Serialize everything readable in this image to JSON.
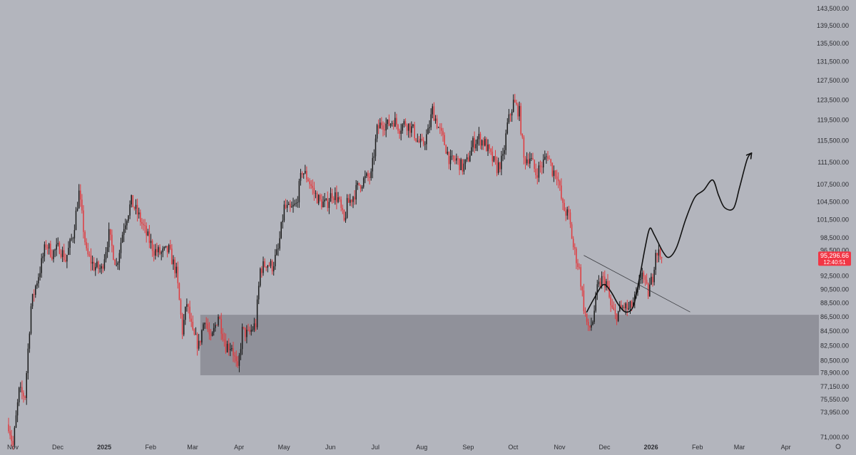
{
  "chart_data": {
    "type": "candlestick",
    "price_axis": {
      "ticks": [
        143500,
        139500,
        135500,
        131500,
        127500,
        123500,
        119500,
        115500,
        111500,
        107500,
        104500,
        101500,
        98500,
        96500,
        92500,
        90500,
        88500,
        86500,
        84500,
        82500,
        80500,
        78900,
        77150,
        75550,
        73950,
        71000
      ],
      "tick_labels": [
        "143,500.00",
        "139,500.00",
        "135,500.00",
        "131,500.00",
        "127,500.00",
        "123,500.00",
        "119,500.00",
        "115,500.00",
        "111,500.00",
        "107,500.00",
        "104,500.00",
        "101,500.00",
        "98,500.00",
        "96,500.00",
        "92,500.00",
        "90,500.00",
        "88,500.00",
        "86,500.00",
        "84,500.00",
        "82,500.00",
        "80,500.00",
        "78,900.00",
        "77,150.00",
        "75,550.00",
        "73,950.00",
        "71,000.00"
      ],
      "log_scale": true
    },
    "time_axis": {
      "labels": [
        "Nov",
        "Dec",
        "2025",
        "Feb",
        "Mar",
        "Apr",
        "May",
        "Jun",
        "Jul",
        "Aug",
        "Sep",
        "Oct",
        "Nov",
        "Dec",
        "2026",
        "Feb",
        "Mar",
        "Apr"
      ],
      "bold_labels": [
        "2025",
        "2026"
      ],
      "label_days": [
        0,
        30,
        61,
        92,
        120,
        151,
        181,
        212,
        242,
        273,
        304,
        334,
        365,
        395,
        426,
        457,
        485,
        516
      ]
    },
    "last_price": {
      "value": 95296.66,
      "label": "95,296.66",
      "countdown": "12:40:51",
      "color": "#f23645"
    },
    "up_color": "#1a1a1a",
    "down_color": "#e03a3e",
    "support_zone": {
      "low": 78600,
      "high": 86800
    },
    "trendline": [
      {
        "day": 384,
        "price": 95700
      },
      {
        "day": 455,
        "price": 87200
      }
    ],
    "projection_path": [
      {
        "day": 386,
        "price": 87200
      },
      {
        "day": 391,
        "price": 89200
      },
      {
        "day": 397,
        "price": 91200
      },
      {
        "day": 402,
        "price": 90200
      },
      {
        "day": 407,
        "price": 88300
      },
      {
        "day": 412,
        "price": 87200
      },
      {
        "day": 417,
        "price": 88000
      },
      {
        "day": 421,
        "price": 92000
      },
      {
        "day": 425,
        "price": 97000
      },
      {
        "day": 428,
        "price": 100000
      },
      {
        "day": 431,
        "price": 99000
      },
      {
        "day": 437,
        "price": 96200
      },
      {
        "day": 441,
        "price": 95400
      },
      {
        "day": 446,
        "price": 97000
      },
      {
        "day": 452,
        "price": 101500
      },
      {
        "day": 458,
        "price": 105200
      },
      {
        "day": 464,
        "price": 106500
      },
      {
        "day": 470,
        "price": 108300
      },
      {
        "day": 474,
        "price": 105600
      },
      {
        "day": 478,
        "price": 103500
      },
      {
        "day": 484,
        "price": 103400
      },
      {
        "day": 488,
        "price": 107000
      },
      {
        "day": 493,
        "price": 112000
      },
      {
        "day": 496,
        "price": 113200
      }
    ],
    "projection_arrow_tip": {
      "day": 496,
      "price": 113200
    },
    "price_anchors": [
      {
        "day": 0,
        "price": 72500
      },
      {
        "day": 3,
        "price": 70000
      },
      {
        "day": 7,
        "price": 76500
      },
      {
        "day": 11,
        "price": 76000
      },
      {
        "day": 15,
        "price": 88000
      },
      {
        "day": 18,
        "price": 91000
      },
      {
        "day": 21,
        "price": 93500
      },
      {
        "day": 25,
        "price": 97500
      },
      {
        "day": 29,
        "price": 96000
      },
      {
        "day": 34,
        "price": 97000
      },
      {
        "day": 38,
        "price": 95000
      },
      {
        "day": 43,
        "price": 99000
      },
      {
        "day": 47,
        "price": 106000
      },
      {
        "day": 52,
        "price": 96000
      },
      {
        "day": 57,
        "price": 94000
      },
      {
        "day": 62,
        "price": 93500
      },
      {
        "day": 67,
        "price": 99000
      },
      {
        "day": 72,
        "price": 94000
      },
      {
        "day": 77,
        "price": 100500
      },
      {
        "day": 82,
        "price": 104500
      },
      {
        "day": 87,
        "price": 102000
      },
      {
        "day": 92,
        "price": 99000
      },
      {
        "day": 97,
        "price": 96500
      },
      {
        "day": 102,
        "price": 96000
      },
      {
        "day": 107,
        "price": 96500
      },
      {
        "day": 112,
        "price": 93000
      },
      {
        "day": 116,
        "price": 84500
      },
      {
        "day": 119,
        "price": 88500
      },
      {
        "day": 123,
        "price": 84000
      },
      {
        "day": 127,
        "price": 82500
      },
      {
        "day": 131,
        "price": 86500
      },
      {
        "day": 135,
        "price": 83000
      },
      {
        "day": 140,
        "price": 86800
      },
      {
        "day": 145,
        "price": 82500
      },
      {
        "day": 149,
        "price": 82500
      },
      {
        "day": 153,
        "price": 79000
      },
      {
        "day": 156,
        "price": 84500
      },
      {
        "day": 160,
        "price": 84000
      },
      {
        "day": 165,
        "price": 85500
      },
      {
        "day": 168,
        "price": 93500
      },
      {
        "day": 172,
        "price": 94500
      },
      {
        "day": 176,
        "price": 94000
      },
      {
        "day": 180,
        "price": 96500
      },
      {
        "day": 184,
        "price": 103500
      },
      {
        "day": 188,
        "price": 103000
      },
      {
        "day": 192,
        "price": 104000
      },
      {
        "day": 196,
        "price": 110000
      },
      {
        "day": 200,
        "price": 108500
      },
      {
        "day": 204,
        "price": 106000
      },
      {
        "day": 208,
        "price": 104500
      },
      {
        "day": 212,
        "price": 104000
      },
      {
        "day": 216,
        "price": 106000
      },
      {
        "day": 220,
        "price": 105000
      },
      {
        "day": 224,
        "price": 101000
      },
      {
        "day": 226,
        "price": 104000
      },
      {
        "day": 230,
        "price": 105500
      },
      {
        "day": 234,
        "price": 107500
      },
      {
        "day": 238,
        "price": 108500
      },
      {
        "day": 242,
        "price": 109000
      },
      {
        "day": 246,
        "price": 117500
      },
      {
        "day": 249,
        "price": 119000
      },
      {
        "day": 253,
        "price": 118500
      },
      {
        "day": 257,
        "price": 119500
      },
      {
        "day": 261,
        "price": 118000
      },
      {
        "day": 265,
        "price": 119000
      },
      {
        "day": 270,
        "price": 117500
      },
      {
        "day": 273,
        "price": 115500
      },
      {
        "day": 276,
        "price": 114500
      },
      {
        "day": 280,
        "price": 117000
      },
      {
        "day": 283,
        "price": 121500
      },
      {
        "day": 287,
        "price": 118000
      },
      {
        "day": 291,
        "price": 115000
      },
      {
        "day": 295,
        "price": 111500
      },
      {
        "day": 299,
        "price": 112000
      },
      {
        "day": 303,
        "price": 110500
      },
      {
        "day": 306,
        "price": 111500
      },
      {
        "day": 310,
        "price": 115000
      },
      {
        "day": 314,
        "price": 116000
      },
      {
        "day": 318,
        "price": 115000
      },
      {
        "day": 322,
        "price": 112500
      },
      {
        "day": 326,
        "price": 110500
      },
      {
        "day": 330,
        "price": 112000
      },
      {
        "day": 333,
        "price": 118500
      },
      {
        "day": 337,
        "price": 123000
      },
      {
        "day": 341,
        "price": 121000
      },
      {
        "day": 344,
        "price": 112000
      },
      {
        "day": 348,
        "price": 112500
      },
      {
        "day": 352,
        "price": 109500
      },
      {
        "day": 356,
        "price": 111000
      },
      {
        "day": 360,
        "price": 113000
      },
      {
        "day": 363,
        "price": 110000
      },
      {
        "day": 366,
        "price": 109500
      },
      {
        "day": 370,
        "price": 103500
      },
      {
        "day": 374,
        "price": 102000
      },
      {
        "day": 377,
        "price": 97000
      },
      {
        "day": 381,
        "price": 93500
      },
      {
        "day": 384,
        "price": 88000
      },
      {
        "day": 387,
        "price": 84500
      },
      {
        "day": 390,
        "price": 86000
      },
      {
        "day": 393,
        "price": 90500
      },
      {
        "day": 396,
        "price": 92000
      },
      {
        "day": 399,
        "price": 91500
      },
      {
        "day": 402,
        "price": 88000
      },
      {
        "day": 405,
        "price": 86500
      },
      {
        "day": 408,
        "price": 87500
      },
      {
        "day": 411,
        "price": 88000
      },
      {
        "day": 414,
        "price": 87500
      },
      {
        "day": 417,
        "price": 88500
      },
      {
        "day": 420,
        "price": 90000
      },
      {
        "day": 423,
        "price": 93500
      },
      {
        "day": 425,
        "price": 91000
      },
      {
        "day": 427,
        "price": 90000
      },
      {
        "day": 430,
        "price": 92500
      },
      {
        "day": 432,
        "price": 96500
      },
      {
        "day": 434,
        "price": 96000
      },
      {
        "day": 436,
        "price": 95300
      }
    ]
  }
}
